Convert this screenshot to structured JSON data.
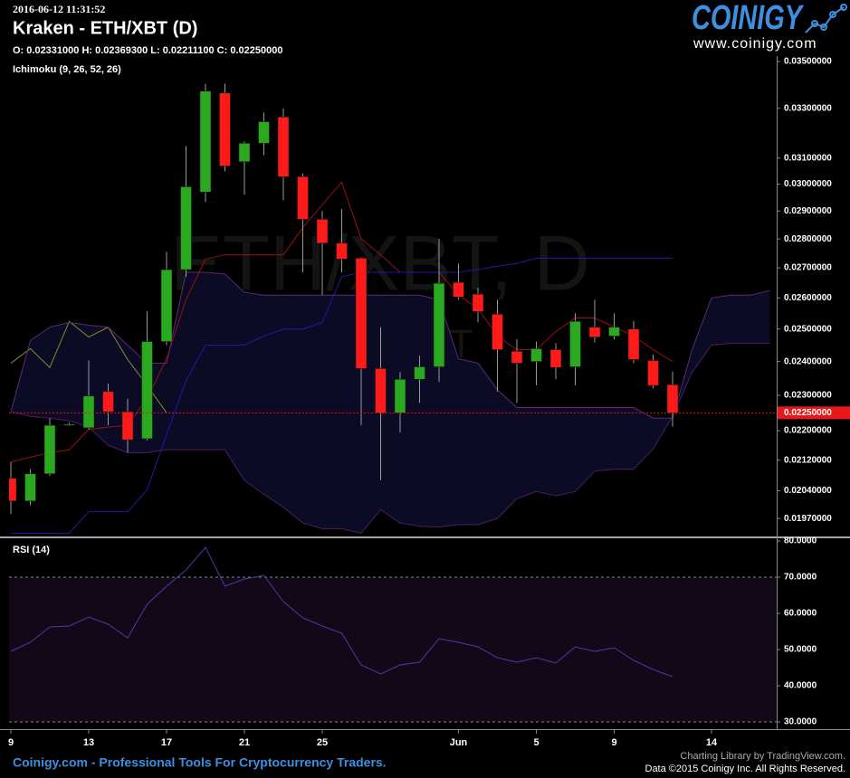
{
  "header": {
    "timestamp": "2016-06-12 11:31:52",
    "title": "Kraken - ETH/XBT (D)",
    "ohlc": "O: 0.02331000 H: 0.02369300 L: 0.02211100 C: 0.02250000",
    "logo": "COINIGY",
    "logo_url": "www.coinigy.com"
  },
  "footer": {
    "tagline": "Coinigy.com - Professional Tools For Cryptocurrency Traders.",
    "library": "Charting Library by TradingView.com.",
    "copyright": "Data ©2015 Coinigy Inc. All Rights Reserved."
  },
  "chart_data": [
    {
      "type": "candlestick",
      "title": "Ichimoku (9, 26, 52, 26)",
      "watermark": "ETH/XBT, D",
      "watermark_sub": "ETH/XBT",
      "categories": [
        "9",
        null,
        null,
        null,
        "13",
        null,
        null,
        null,
        "17",
        null,
        null,
        null,
        "21",
        null,
        null,
        null,
        "25",
        null,
        null,
        null,
        null,
        null,
        null,
        "Jun",
        null,
        null,
        null,
        "5",
        null,
        null,
        null,
        "9",
        null,
        null,
        null,
        null,
        "14",
        null,
        null,
        null
      ],
      "open": [
        0.02072,
        0.02014,
        0.02084,
        0.02215,
        0.02208,
        0.02311,
        0.02253,
        0.02178,
        0.02461,
        0.02694,
        0.0297,
        0.03364,
        0.03086,
        0.03158,
        0.03264,
        0.03028,
        0.0287,
        0.02785,
        0.02733,
        0.02379,
        0.0225,
        0.02347,
        0.02384,
        0.02651,
        0.02612,
        0.02547,
        0.02431,
        0.024,
        0.02436,
        0.02384,
        0.02506,
        0.02478,
        0.025,
        0.02403,
        0.02331,
        null,
        null,
        null,
        null,
        null
      ],
      "high": [
        0.02115,
        0.02096,
        0.02235,
        0.02223,
        0.02403,
        0.02334,
        0.0229,
        0.02556,
        0.02755,
        0.03147,
        0.03404,
        0.03404,
        0.03165,
        0.03282,
        0.033,
        0.03041,
        0.029,
        0.02907,
        0.02736,
        0.02506,
        0.02368,
        0.02417,
        0.028,
        0.02715,
        0.02633,
        0.02594,
        0.02469,
        0.02461,
        0.02456,
        0.0255,
        0.02594,
        0.0255,
        0.02526,
        0.02422,
        0.023693,
        null,
        null,
        null,
        null,
        null
      ],
      "low": [
        0.01981,
        0.02003,
        0.02079,
        0.02213,
        0.02203,
        0.02215,
        0.0214,
        0.02173,
        0.0245,
        0.0267,
        0.02933,
        0.03048,
        0.0296,
        0.03111,
        0.0294,
        0.02685,
        0.02609,
        0.02685,
        0.02215,
        0.02067,
        0.02195,
        0.02278,
        0.02339,
        0.02594,
        0.02521,
        0.02311,
        0.02278,
        0.02329,
        0.02347,
        0.02329,
        0.02458,
        0.02467,
        0.02395,
        0.02321,
        0.022111,
        null,
        null,
        null,
        null,
        null
      ],
      "close": [
        0.02014,
        0.02084,
        0.02215,
        0.02218,
        0.02298,
        0.02253,
        0.02175,
        0.02461,
        0.02694,
        0.0299,
        0.03372,
        0.03069,
        0.03158,
        0.03245,
        0.03028,
        0.0287,
        0.02785,
        0.0273,
        0.02379,
        0.0225,
        0.02347,
        0.02384,
        0.02648,
        0.02603,
        0.02556,
        0.02436,
        0.02395,
        0.02439,
        0.02382,
        0.02524,
        0.02475,
        0.02506,
        0.02406,
        0.02329,
        0.0225,
        null,
        null,
        null,
        null,
        null
      ],
      "up_color": "#2aa81f",
      "down_color": "#ff1a1a",
      "overlays": [
        {
          "color": "#9a1010",
          "values": [
            0.02115,
            0.02128,
            0.0214,
            0.02148,
            0.02203,
            0.0221,
            0.02215,
            0.0229,
            0.02408,
            0.02594,
            0.0273,
            0.02745,
            0.02745,
            0.02745,
            0.02745,
            0.0284,
            0.02923,
            0.03007,
            0.028,
            0.02745,
            0.02685,
            0.02685,
            0.02685,
            0.02609,
            0.02565,
            0.02478,
            0.02436,
            0.02436,
            0.02492,
            0.02535,
            0.02535,
            0.02506,
            0.02478,
            0.02436,
            0.024,
            null,
            null,
            null,
            null,
            null
          ]
        },
        {
          "color": "#1c1ca8",
          "values": [
            0.01934,
            0.01934,
            0.01934,
            0.01934,
            0.01987,
            0.01987,
            0.01987,
            0.02042,
            0.0219,
            0.02342,
            0.0245,
            0.0245,
            0.0245,
            0.02478,
            0.025,
            0.025,
            0.02521,
            0.0267,
            0.02685,
            0.02685,
            0.02685,
            0.02685,
            0.02685,
            0.02685,
            0.02694,
            0.02706,
            0.02715,
            0.02733,
            0.02733,
            0.02733,
            0.02733,
            0.02733,
            0.02733,
            0.02733,
            0.02733,
            null,
            null,
            null,
            null,
            null
          ]
        },
        {
          "color": "#8c8a1c",
          "values": [
            0.02395,
            0.02439,
            0.02382,
            0.02524,
            0.02475,
            0.02506,
            0.02406,
            0.02329,
            0.0225,
            null,
            null,
            null,
            null,
            null,
            null,
            null,
            null,
            null,
            null,
            null,
            null,
            null,
            null,
            null,
            null,
            null,
            null,
            null,
            null,
            null,
            null,
            null,
            null,
            null,
            null,
            null,
            null,
            null,
            null,
            null
          ]
        },
        {
          "color": "#5e2a70",
          "values": [
            0.02253,
            0.02464,
            0.02506,
            0.02521,
            0.02512,
            0.02506,
            0.0245,
            0.02395,
            0.02395,
            0.02685,
            0.02685,
            0.02679,
            0.02618,
            0.02609,
            0.02609,
            0.02609,
            0.02609,
            0.02609,
            0.02609,
            0.02609,
            0.02609,
            0.02609,
            0.02594,
            0.02408,
            0.02395,
            0.02316,
            0.02265,
            0.02265,
            0.02265,
            0.02265,
            0.02265,
            0.02265,
            0.02265,
            0.02235,
            0.02235,
            0.02436,
            0.026,
            0.02609,
            0.02609,
            0.02624
          ]
        },
        {
          "color": "#4e1c60",
          "values": [
            0.02253,
            0.0224,
            0.02235,
            0.02228,
            0.0221,
            0.0216,
            0.0214,
            0.0214,
            0.02148,
            0.02148,
            0.02148,
            0.02148,
            0.02067,
            0.02031,
            0.01998,
            0.01959,
            0.01945,
            0.01945,
            0.01934,
            0.01992,
            0.01959,
            0.01951,
            0.01949,
            0.01955,
            0.01955,
            0.0197,
            0.0202,
            0.02038,
            0.02027,
            0.02038,
            0.02091,
            0.02096,
            0.02096,
            0.0215,
            0.0224,
            0.02368,
            0.0245,
            0.02456,
            0.02456,
            0.02456
          ]
        }
      ],
      "cloud_color": "#0b0b26",
      "last_price": {
        "value": 0.0225,
        "label": "0.02250000"
      },
      "last_price_color": "#e81818",
      "log_scale": true,
      "ylim": [
        0.01926,
        0.03512
      ],
      "yticks": [
        {
          "value": 0.035,
          "label": "0.03500000"
        },
        {
          "value": 0.033,
          "label": "0.03300000"
        },
        {
          "value": 0.031,
          "label": "0.03100000"
        },
        {
          "value": 0.03,
          "label": "0.03000000"
        },
        {
          "value": 0.029,
          "label": "0.02900000"
        },
        {
          "value": 0.028,
          "label": "0.02800000"
        },
        {
          "value": 0.027,
          "label": "0.02700000"
        },
        {
          "value": 0.026,
          "label": "0.02600000"
        },
        {
          "value": 0.025,
          "label": "0.02500000"
        },
        {
          "value": 0.024,
          "label": "0.02400000"
        },
        {
          "value": 0.023,
          "label": "0.02300000"
        },
        {
          "value": 0.022,
          "label": "0.02200000"
        },
        {
          "value": 0.0212,
          "label": "0.02120000"
        },
        {
          "value": 0.0204,
          "label": "0.02040000"
        },
        {
          "value": 0.0197,
          "label": "0.01970000"
        }
      ]
    },
    {
      "type": "line",
      "title": "RSI (14)",
      "color": "#4a3aa8",
      "values": [
        49.5,
        52,
        56.25,
        56.5,
        59,
        57,
        53.25,
        62.5,
        67.5,
        72,
        78.25,
        67.5,
        69.5,
        70.5,
        63.25,
        58.75,
        56.5,
        54.5,
        45.75,
        43.25,
        45.75,
        46.5,
        53,
        52,
        50.75,
        47.75,
        46.5,
        47.75,
        46.25,
        50.75,
        49.5,
        50.5,
        47,
        44.5,
        42.5,
        null,
        null,
        null,
        null,
        null
      ],
      "band": [
        30,
        70
      ],
      "band_color": "#120818",
      "ylim": [
        29.5,
        80.25
      ],
      "yticks": [
        {
          "value": 80,
          "label": "80.0000"
        },
        {
          "value": 70,
          "label": "70.0000"
        },
        {
          "value": 60,
          "label": "60.0000"
        },
        {
          "value": 50,
          "label": "50.0000"
        },
        {
          "value": 40,
          "label": "40.0000"
        },
        {
          "value": 30,
          "label": "30.0000"
        }
      ]
    }
  ]
}
